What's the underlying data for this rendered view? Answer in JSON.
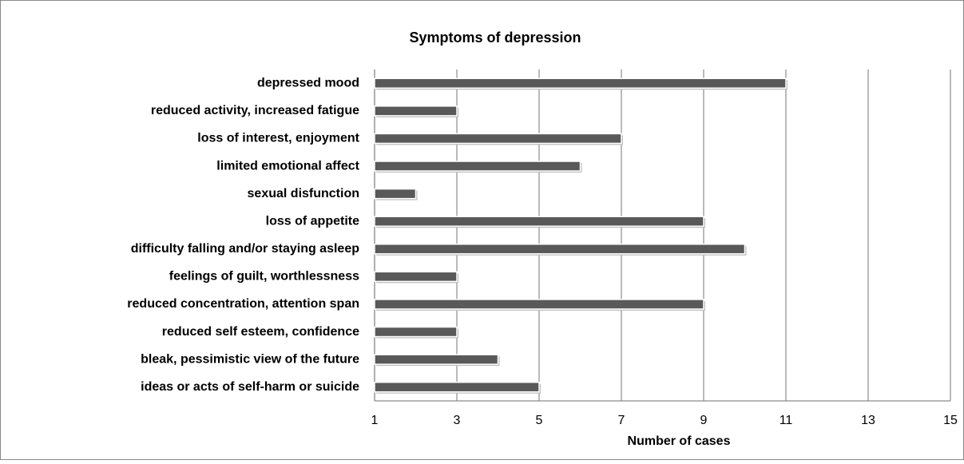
{
  "chart_data": {
    "type": "bar",
    "orientation": "horizontal",
    "title": "Symptoms of depression",
    "categories": [
      "depressed mood",
      "reduced activity, increased fatigue",
      "loss of interest, enjoyment",
      "limited emotional affect",
      "sexual disfunction",
      "loss of appetite",
      "difficulty falling and/or staying asleep",
      "feelings of guilt, worthlessness",
      "reduced concentration, attention span",
      "reduced self esteem, confidence",
      "bleak, pessimistic view of the future",
      "ideas or acts of self-harm or suicide"
    ],
    "values": [
      11,
      3,
      7,
      6,
      2,
      9,
      10,
      3,
      9,
      3,
      4,
      5
    ],
    "color": "#595959",
    "xlabel": "Number of cases",
    "xlim": [
      1,
      15
    ],
    "xticks": [
      1,
      3,
      5,
      7,
      9,
      11,
      13,
      15
    ],
    "grid": true
  }
}
